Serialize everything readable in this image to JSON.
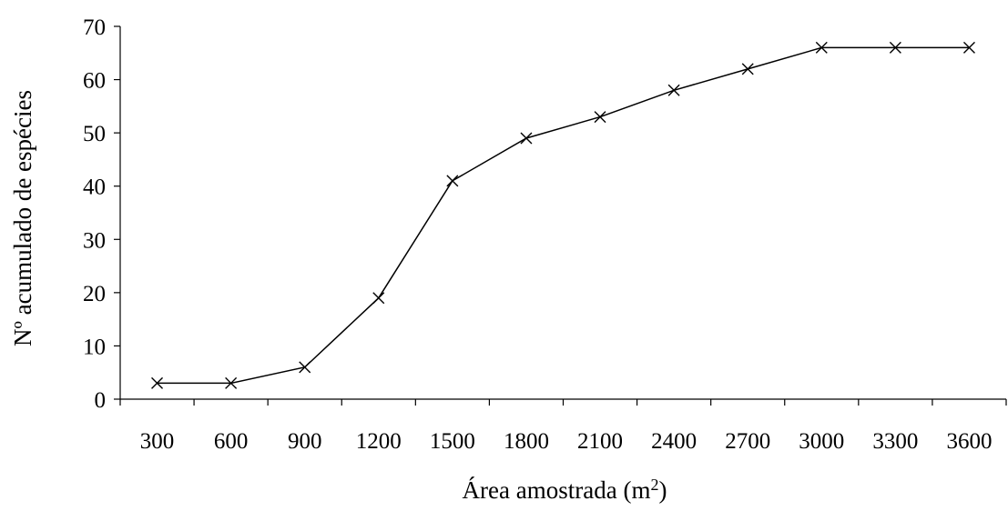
{
  "chart_data": {
    "type": "line",
    "title": "",
    "xlabel": "Área amostrada (m",
    "xlabel_superscript": "2",
    "xlabel_suffix": ")",
    "ylabel": "Nº acumulado de espécies",
    "categories": [
      "300",
      "600",
      "900",
      "1200",
      "1500",
      "1800",
      "2100",
      "2400",
      "2700",
      "3000",
      "3300",
      "3600"
    ],
    "series": [
      {
        "values": [
          3,
          3,
          6,
          19,
          41,
          49,
          53,
          58,
          62,
          66,
          66,
          66
        ],
        "marker": "x",
        "color": "#000000"
      }
    ],
    "ylim": [
      0,
      70
    ],
    "yticks": [
      0,
      10,
      20,
      30,
      40,
      50,
      60,
      70
    ],
    "grid": false,
    "legend": "none"
  }
}
